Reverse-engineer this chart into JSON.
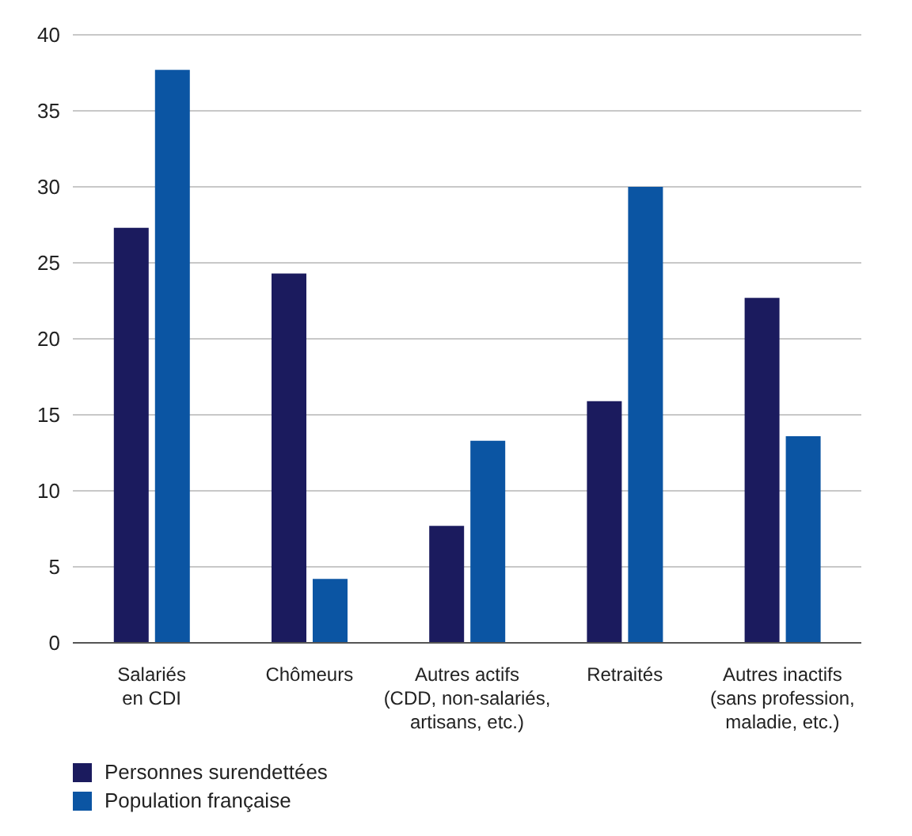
{
  "chart_data": {
    "type": "bar",
    "categories": [
      "Salariés\nen CDI",
      "Chômeurs",
      "Autres actifs\n(CDD, non-salariés,\nartisans, etc.)",
      "Retraités",
      "Autres inactifs\n(sans profession,\nmaladie, etc.)"
    ],
    "series": [
      {
        "name": "Personnes surendettées",
        "color": "#1b1b5e",
        "values": [
          27.3,
          24.3,
          7.7,
          15.9,
          22.7
        ]
      },
      {
        "name": "Population française",
        "color": "#0b55a3",
        "values": [
          37.7,
          4.2,
          13.3,
          30.0,
          13.6
        ]
      }
    ],
    "ylim": [
      0,
      40
    ],
    "yticks": [
      0,
      5,
      10,
      15,
      20,
      25,
      30,
      35,
      40
    ],
    "grid": "y",
    "legend": "bottom left"
  }
}
